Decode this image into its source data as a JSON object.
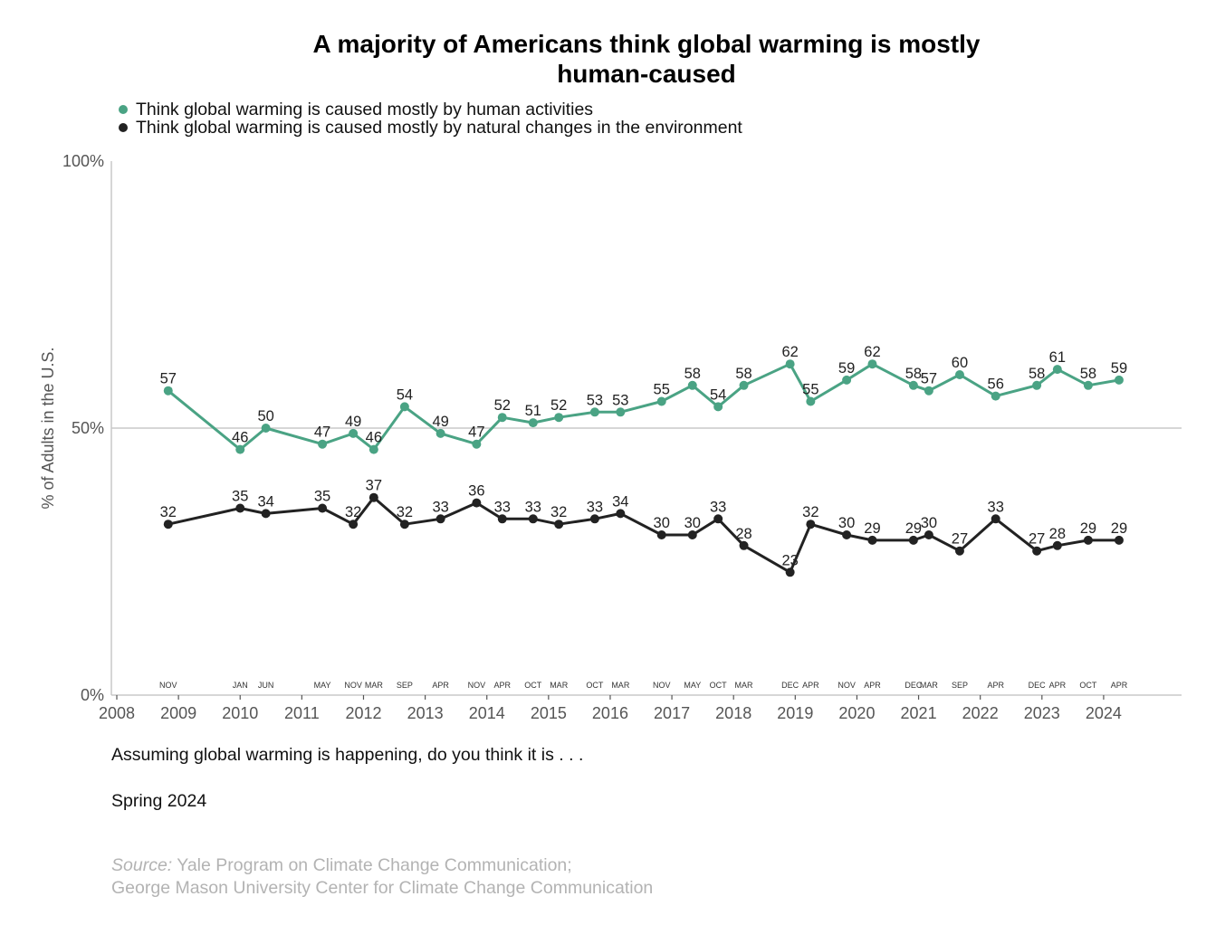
{
  "chart_data": {
    "type": "line",
    "title": [
      "A majority of Americans think global warming is mostly",
      "human-caused"
    ],
    "ylabel": "% of Adults in the U.S.",
    "xlabel": "",
    "ylim": [
      0,
      100
    ],
    "xlim": [
      2008,
      2025.2
    ],
    "yticks": [
      0,
      50,
      100
    ],
    "ytick_labels": [
      "0%",
      "50%",
      "100%"
    ],
    "reference_line": 50,
    "xticks": [
      2008,
      2009,
      2010,
      2011,
      2012,
      2013,
      2014,
      2015,
      2016,
      2017,
      2018,
      2019,
      2020,
      2021,
      2022,
      2023,
      2024
    ],
    "xtick_labels": [
      "2008",
      "2009",
      "2010",
      "2011",
      "2012",
      "2013",
      "2014",
      "2015",
      "2016",
      "2017",
      "2018",
      "2019",
      "2020",
      "2021",
      "2022",
      "2023",
      "2024"
    ],
    "survey_dates": [
      {
        "year": 2008,
        "month": 11,
        "label": "NOV"
      },
      {
        "year": 2010,
        "month": 1,
        "label": "JAN"
      },
      {
        "year": 2010,
        "month": 6,
        "label": "JUN"
      },
      {
        "year": 2011,
        "month": 5,
        "label": "MAY"
      },
      {
        "year": 2011,
        "month": 11,
        "label": "NOV"
      },
      {
        "year": 2012,
        "month": 3,
        "label": "MAR"
      },
      {
        "year": 2012,
        "month": 9,
        "label": "SEP"
      },
      {
        "year": 2013,
        "month": 4,
        "label": "APR"
      },
      {
        "year": 2013,
        "month": 11,
        "label": "NOV"
      },
      {
        "year": 2014,
        "month": 4,
        "label": "APR"
      },
      {
        "year": 2014,
        "month": 10,
        "label": "OCT"
      },
      {
        "year": 2015,
        "month": 3,
        "label": "MAR"
      },
      {
        "year": 2015,
        "month": 10,
        "label": "OCT"
      },
      {
        "year": 2016,
        "month": 3,
        "label": "MAR"
      },
      {
        "year": 2016,
        "month": 11,
        "label": "NOV"
      },
      {
        "year": 2017,
        "month": 5,
        "label": "MAY"
      },
      {
        "year": 2017,
        "month": 10,
        "label": "OCT"
      },
      {
        "year": 2018,
        "month": 3,
        "label": "MAR"
      },
      {
        "year": 2018,
        "month": 12,
        "label": "DEC"
      },
      {
        "year": 2019,
        "month": 4,
        "label": "APR"
      },
      {
        "year": 2019,
        "month": 11,
        "label": "NOV"
      },
      {
        "year": 2020,
        "month": 4,
        "label": "APR"
      },
      {
        "year": 2020,
        "month": 12,
        "label": "DEC"
      },
      {
        "year": 2021,
        "month": 3,
        "label": "MAR"
      },
      {
        "year": 2021,
        "month": 9,
        "label": "SEP"
      },
      {
        "year": 2022,
        "month": 4,
        "label": "APR"
      },
      {
        "year": 2022,
        "month": 12,
        "label": "DEC"
      },
      {
        "year": 2023,
        "month": 4,
        "label": "APR"
      },
      {
        "year": 2023,
        "month": 10,
        "label": "OCT"
      },
      {
        "year": 2024,
        "month": 4,
        "label": "APR"
      }
    ],
    "series": [
      {
        "name": "Think global warming is caused mostly by human activities",
        "color": "#4aa384",
        "values": [
          57,
          46,
          50,
          47,
          49,
          46,
          54,
          49,
          47,
          52,
          51,
          52,
          53,
          53,
          55,
          58,
          54,
          58,
          62,
          55,
          59,
          62,
          58,
          57,
          60,
          56,
          58,
          61,
          58,
          59
        ]
      },
      {
        "name": "Think global warming is caused mostly by natural changes in the environment",
        "color": "#222222",
        "values": [
          32,
          35,
          34,
          35,
          32,
          37,
          32,
          33,
          36,
          33,
          33,
          32,
          33,
          34,
          30,
          30,
          33,
          28,
          23,
          32,
          30,
          29,
          29,
          30,
          27,
          33,
          27,
          28,
          29,
          29
        ]
      }
    ],
    "legend_position": "top-left"
  },
  "legend": [
    {
      "label": "Think global warming is caused mostly by human activities",
      "color": "#4aa384"
    },
    {
      "label": "Think global warming is caused mostly by natural changes in the environment",
      "color": "#222222"
    }
  ],
  "footer": {
    "question": "Assuming global warming is happening, do you think it is . . .",
    "wave": "Spring 2024",
    "source_label": "Source:",
    "source_line1": " Yale Program on Climate Change Communication;",
    "source_line2": "George Mason University Center for Climate Change Communication"
  }
}
